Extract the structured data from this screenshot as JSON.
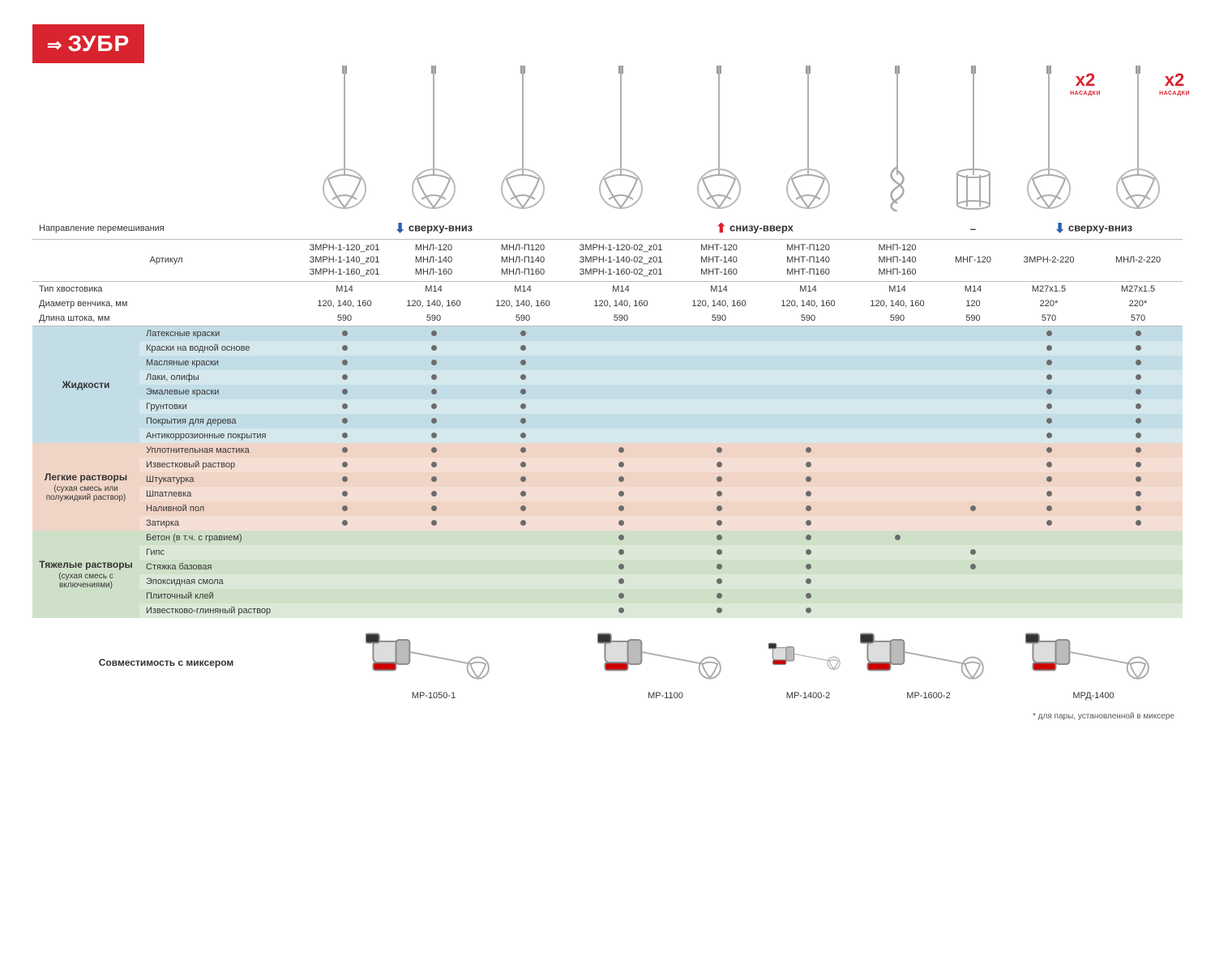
{
  "brand": "ЗУБР",
  "headers": {
    "direction": "Направление перемешивания",
    "sku": "Артикул",
    "shank": "Тип хвостовика",
    "whisk_d": "Диаметр венчика, мм",
    "shaft_l": "Длина штока, мм"
  },
  "dir_groups": [
    {
      "span": 3,
      "label": "сверху-вниз",
      "arrow": "down"
    },
    {
      "span": 4,
      "label": "снизу-вверх",
      "arrow": "up"
    },
    {
      "span": 1,
      "label": "–",
      "arrow": "none"
    },
    {
      "span": 2,
      "label": "сверху-вниз",
      "arrow": "down"
    }
  ],
  "products": [
    {
      "sku": "ЗМРН-1-120_z01\nЗМРН-1-140_z01\nЗМРН-1-160_z01",
      "shank": "М14",
      "diam": "120, 140, 160",
      "len": "590",
      "x2": false,
      "whisk": "spiral"
    },
    {
      "sku": "МНЛ-120\nМНЛ-140\nМНЛ-160",
      "shank": "М14",
      "diam": "120, 140, 160",
      "len": "590",
      "x2": false,
      "whisk": "spiral"
    },
    {
      "sku": "МНЛ-П120\nМНЛ-П140\nМНЛ-П160",
      "shank": "М14",
      "diam": "120, 140, 160",
      "len": "590",
      "x2": false,
      "whisk": "spiral"
    },
    {
      "sku": "ЗМРН-1-120-02_z01\nЗМРН-1-140-02_z01\nЗМРН-1-160-02_z01",
      "shank": "М14",
      "diam": "120, 140, 160",
      "len": "590",
      "x2": false,
      "whisk": "spiral"
    },
    {
      "sku": "МНТ-120\nМНТ-140\nМНТ-160",
      "shank": "М14",
      "diam": "120, 140, 160",
      "len": "590",
      "x2": false,
      "whisk": "spiral"
    },
    {
      "sku": "МНТ-П120\nМНТ-П140\nМНТ-П160",
      "shank": "М14",
      "diam": "120, 140, 160",
      "len": "590",
      "x2": false,
      "whisk": "spiral"
    },
    {
      "sku": "МНП-120\nМНП-140\nМНП-160",
      "shank": "М14",
      "diam": "120, 140, 160",
      "len": "590",
      "x2": false,
      "whisk": "screw"
    },
    {
      "sku": "МНГ-120",
      "shank": "М14",
      "diam": "120",
      "len": "590",
      "x2": false,
      "whisk": "cage"
    },
    {
      "sku": "ЗМРН-2-220",
      "shank": "М27х1.5",
      "diam": "220*",
      "len": "570",
      "x2": true,
      "whisk": "spiral"
    },
    {
      "sku": "МНЛ-2-220",
      "shank": "М27х1.5",
      "diam": "220*",
      "len": "570",
      "x2": true,
      "whisk": "spiral"
    }
  ],
  "x2_label": "НАСАДКИ",
  "categories": [
    {
      "name": "Жидкости",
      "tone": "blue",
      "rows": [
        {
          "label": "Латексные краски",
          "cells": [
            1,
            1,
            1,
            0,
            0,
            0,
            0,
            0,
            1,
            1
          ]
        },
        {
          "label": "Краски на водной основе",
          "cells": [
            1,
            1,
            1,
            0,
            0,
            0,
            0,
            0,
            1,
            1
          ]
        },
        {
          "label": "Масляные краски",
          "cells": [
            1,
            1,
            1,
            0,
            0,
            0,
            0,
            0,
            1,
            1
          ]
        },
        {
          "label": "Лаки, олифы",
          "cells": [
            1,
            1,
            1,
            0,
            0,
            0,
            0,
            0,
            1,
            1
          ]
        },
        {
          "label": "Эмалевые краски",
          "cells": [
            1,
            1,
            1,
            0,
            0,
            0,
            0,
            0,
            1,
            1
          ]
        },
        {
          "label": "Грунтовки",
          "cells": [
            1,
            1,
            1,
            0,
            0,
            0,
            0,
            0,
            1,
            1
          ]
        },
        {
          "label": "Покрытия для дерева",
          "cells": [
            1,
            1,
            1,
            0,
            0,
            0,
            0,
            0,
            1,
            1
          ]
        },
        {
          "label": "Антикоррозионные покрытия",
          "cells": [
            1,
            1,
            1,
            0,
            0,
            0,
            0,
            0,
            1,
            1
          ]
        }
      ]
    },
    {
      "name": "Легкие растворы",
      "sub": "(сухая смесь или полужидкий раствор)",
      "tone": "peach",
      "rows": [
        {
          "label": "Уплотнительная мастика",
          "cells": [
            1,
            1,
            1,
            1,
            1,
            1,
            0,
            0,
            1,
            1
          ]
        },
        {
          "label": "Известковый раствор",
          "cells": [
            1,
            1,
            1,
            1,
            1,
            1,
            0,
            0,
            1,
            1
          ]
        },
        {
          "label": "Штукатурка",
          "cells": [
            1,
            1,
            1,
            1,
            1,
            1,
            0,
            0,
            1,
            1
          ]
        },
        {
          "label": "Шпатлевка",
          "cells": [
            1,
            1,
            1,
            1,
            1,
            1,
            0,
            0,
            1,
            1
          ]
        },
        {
          "label": "Наливной пол",
          "cells": [
            1,
            1,
            1,
            1,
            1,
            1,
            0,
            1,
            1,
            1
          ]
        },
        {
          "label": "Затирка",
          "cells": [
            1,
            1,
            1,
            1,
            1,
            1,
            0,
            0,
            1,
            1
          ]
        }
      ]
    },
    {
      "name": "Тяжелые растворы",
      "sub": "(сухая смесь с включениями)",
      "tone": "green",
      "rows": [
        {
          "label": "Бетон (в т.ч. с гравием)",
          "cells": [
            0,
            0,
            0,
            1,
            1,
            1,
            1,
            0,
            0,
            0
          ]
        },
        {
          "label": "Гипс",
          "cells": [
            0,
            0,
            0,
            1,
            1,
            1,
            0,
            1,
            0,
            0
          ]
        },
        {
          "label": "Стяжка базовая",
          "cells": [
            0,
            0,
            0,
            1,
            1,
            1,
            0,
            1,
            0,
            0
          ]
        },
        {
          "label": "Эпоксидная смола",
          "cells": [
            0,
            0,
            0,
            1,
            1,
            1,
            0,
            0,
            0,
            0
          ]
        },
        {
          "label": "Плиточный клей",
          "cells": [
            0,
            0,
            0,
            1,
            1,
            1,
            0,
            0,
            0,
            0
          ]
        },
        {
          "label": "Известково-глиняный раствор",
          "cells": [
            0,
            0,
            0,
            1,
            1,
            1,
            0,
            0,
            0,
            0
          ]
        }
      ]
    }
  ],
  "compat": {
    "label": "Совместимость с миксером",
    "mixers": [
      {
        "name": "МР-1050-1",
        "span": 3
      },
      {
        "name": "МР-1100",
        "span": 2
      },
      {
        "name": "МР-1400-2",
        "span": 1
      },
      {
        "name": "МР-1600-2",
        "span": 2
      },
      {
        "name": "МРД-1400",
        "span": 2
      }
    ]
  },
  "footnote": "* для пары, установленной в миксере",
  "colors": {
    "brand": "#d9232e",
    "blue1": "#d5e8ee",
    "blue2": "#c3dde6",
    "peach1": "#f5dfd4",
    "peach2": "#f0d4c6",
    "green1": "#dde9d8",
    "green2": "#cfe0c8"
  }
}
